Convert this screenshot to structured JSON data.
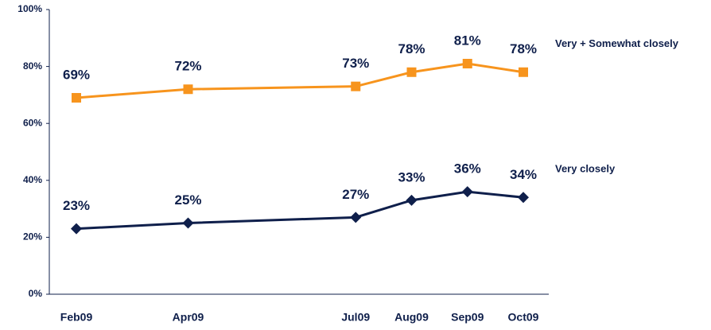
{
  "chart_data": {
    "type": "line",
    "x": [
      "2009-02",
      "2009-04",
      "2009-07",
      "2009-08",
      "2009-09",
      "2009-10"
    ],
    "xticks": [
      {
        "value": "2009-02",
        "label": "Feb09"
      },
      {
        "value": "2009-04",
        "label": "Apr09"
      },
      {
        "value": "2009-07",
        "label": "Jul09"
      },
      {
        "value": "2009-08",
        "label": "Aug09"
      },
      {
        "value": "2009-09",
        "label": "Sep09"
      },
      {
        "value": "2009-10",
        "label": "Oct09"
      }
    ],
    "ylim": [
      0,
      100
    ],
    "yticks": [
      {
        "value": 0,
        "label": "0%"
      },
      {
        "value": 20,
        "label": "20%"
      },
      {
        "value": 40,
        "label": "40%"
      },
      {
        "value": 60,
        "label": "60%"
      },
      {
        "value": 80,
        "label": "80%"
      },
      {
        "value": 100,
        "label": "100%"
      }
    ],
    "series": [
      {
        "name": "Very + Somewhat closely",
        "color": "#f7941d",
        "marker": "square",
        "values": [
          69,
          72,
          73,
          78,
          81,
          78
        ],
        "value_labels": [
          "69%",
          "72%",
          "73%",
          "78%",
          "81%",
          "78%"
        ]
      },
      {
        "name": "Very closely",
        "color": "#0f1f4b",
        "marker": "diamond",
        "values": [
          23,
          25,
          27,
          33,
          36,
          34
        ],
        "value_labels": [
          "23%",
          "25%",
          "27%",
          "33%",
          "36%",
          "34%"
        ]
      }
    ]
  }
}
